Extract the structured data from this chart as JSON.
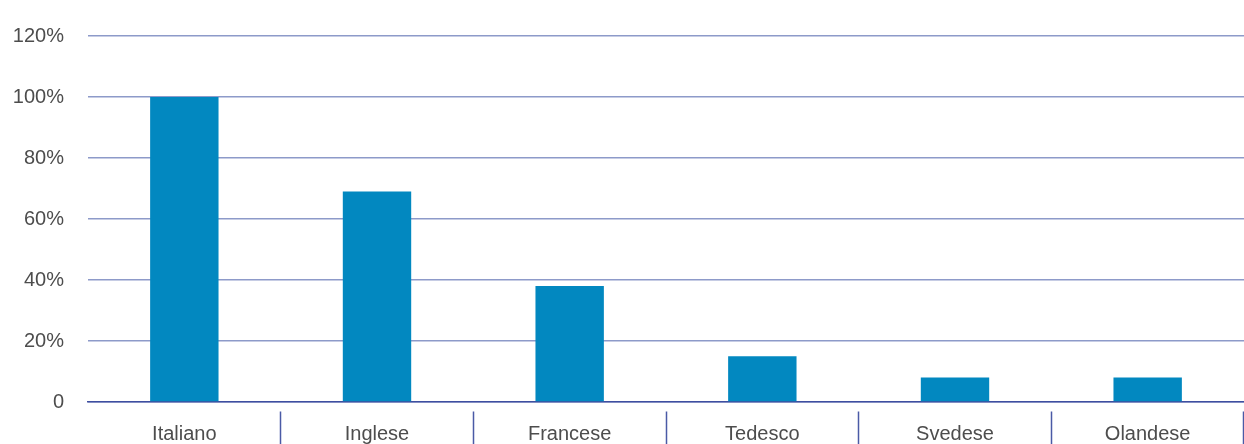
{
  "chart_data": {
    "type": "bar",
    "categories": [
      "Italiano",
      "Inglese",
      "Francese",
      "Tedesco",
      "Svedese",
      "Olandese"
    ],
    "values": [
      100,
      69,
      38,
      15,
      8,
      8
    ],
    "color": "#0288c0",
    "ylim": [
      0,
      120
    ],
    "yticks": [
      0,
      {
        "value": 20,
        "label": "20%"
      },
      {
        "value": 40,
        "label": "40%"
      },
      {
        "value": 60,
        "label": "60%"
      },
      {
        "value": 80,
        "label": "80%"
      },
      {
        "value": 100,
        "label": "100%"
      },
      {
        "value": 120,
        "label": "120%"
      }
    ],
    "grid": "y"
  }
}
